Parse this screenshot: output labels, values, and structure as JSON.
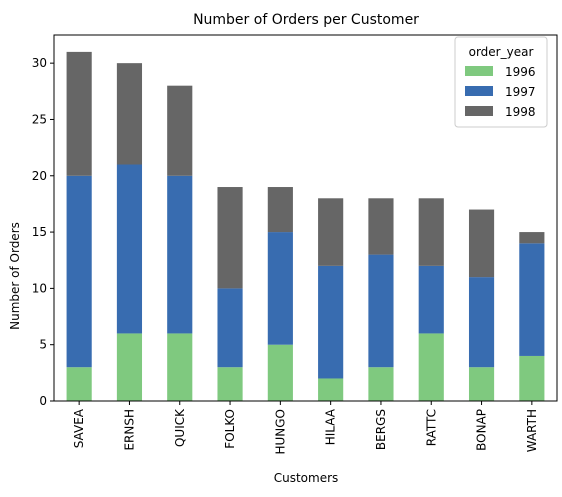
{
  "chart_data": {
    "type": "bar",
    "stacked": true,
    "title": "Number of Orders per Customer",
    "xlabel": "Customers",
    "ylabel": "Number of Orders",
    "ylim": [
      0,
      32.5
    ],
    "yticks": [
      0,
      5,
      10,
      15,
      20,
      25,
      30
    ],
    "grid": false,
    "legend": {
      "title": "order_year",
      "placement": "top-right"
    },
    "categories": [
      "SAVEA",
      "ERNSH",
      "QUICK",
      "FOLKO",
      "HUNGO",
      "HILAA",
      "BERGS",
      "RATTC",
      "BONAP",
      "WARTH"
    ],
    "series": [
      {
        "name": "1996",
        "color": "#7fc97f",
        "values": [
          3,
          6,
          6,
          3,
          5,
          2,
          3,
          6,
          3,
          4
        ]
      },
      {
        "name": "1997",
        "color": "#386cb0",
        "values": [
          17,
          15,
          14,
          7,
          10,
          10,
          10,
          6,
          8,
          10
        ]
      },
      {
        "name": "1998",
        "color": "#666666",
        "values": [
          11,
          9,
          8,
          9,
          4,
          6,
          5,
          6,
          6,
          1
        ]
      }
    ]
  }
}
